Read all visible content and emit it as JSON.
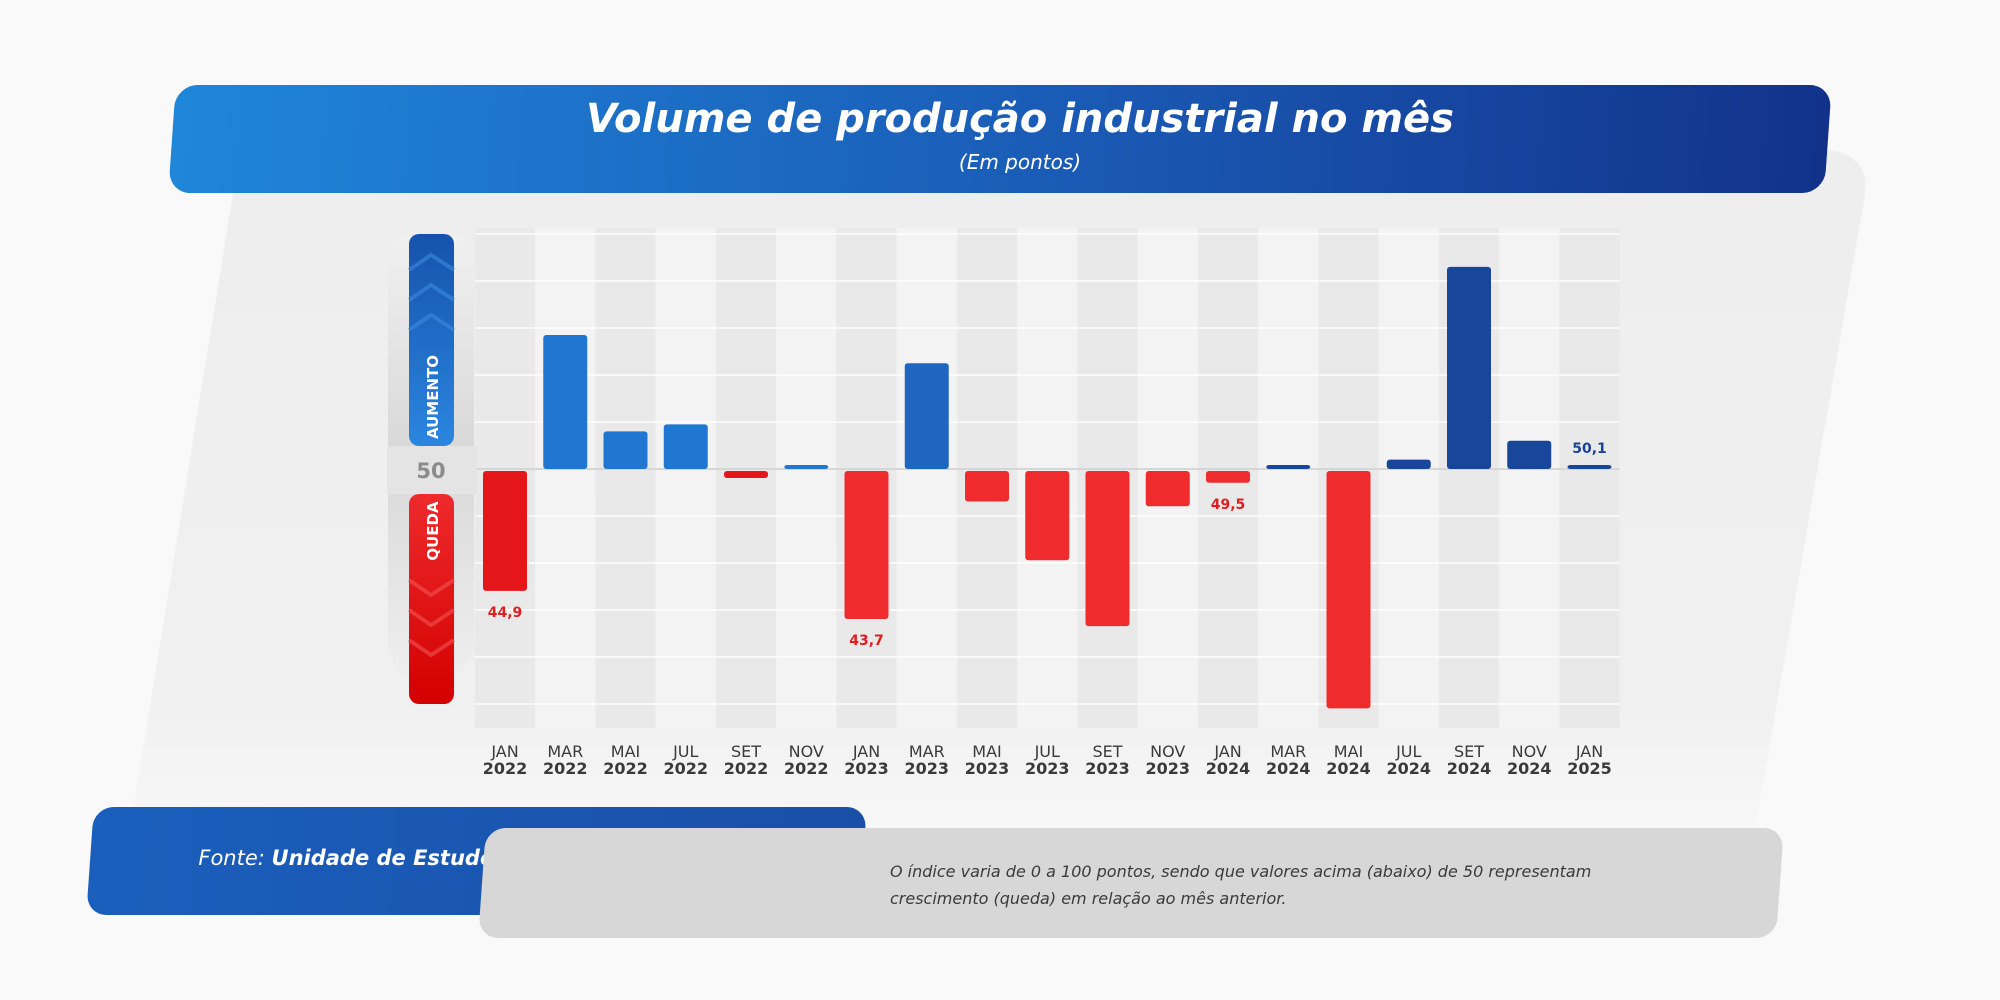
{
  "chart_data": {
    "type": "bar",
    "title": "Volume de produção industrial no mês",
    "subtitle": "(Em pontos)",
    "baseline": 50,
    "baseline_label": "50",
    "up_label": "AUMENTO",
    "down_label": "QUEDA",
    "categories": [
      {
        "month": "JAN",
        "year": "2022"
      },
      {
        "month": "MAR",
        "year": "2022"
      },
      {
        "month": "MAI",
        "year": "2022"
      },
      {
        "month": "JUL",
        "year": "2022"
      },
      {
        "month": "SET",
        "year": "2022"
      },
      {
        "month": "NOV",
        "year": "2022"
      },
      {
        "month": "JAN",
        "year": "2023"
      },
      {
        "month": "MAR",
        "year": "2023"
      },
      {
        "month": "MAI",
        "year": "2023"
      },
      {
        "month": "JUL",
        "year": "2023"
      },
      {
        "month": "SET",
        "year": "2023"
      },
      {
        "month": "NOV",
        "year": "2023"
      },
      {
        "month": "JAN",
        "year": "2024"
      },
      {
        "month": "MAR",
        "year": "2024"
      },
      {
        "month": "MAI",
        "year": "2024"
      },
      {
        "month": "JUL",
        "year": "2024"
      },
      {
        "month": "SET",
        "year": "2024"
      },
      {
        "month": "NOV",
        "year": "2024"
      },
      {
        "month": "JAN",
        "year": "2025"
      }
    ],
    "values": [
      44.9,
      55.7,
      51.6,
      51.9,
      49.7,
      50.1,
      43.7,
      54.5,
      48.7,
      46.2,
      43.4,
      48.5,
      49.5,
      50.1,
      39.9,
      50.4,
      58.6,
      51.2,
      50.1
    ],
    "data_labels": [
      "44,9",
      "",
      "",
      "",
      "",
      "",
      "43,7",
      "",
      "",
      "",
      "",
      "",
      "49,5",
      "",
      "",
      "",
      "",
      "",
      "50,1"
    ],
    "ylim": [
      40,
      60
    ],
    "grid": true,
    "colors": {
      "up_2022": "#1f77d2",
      "up_2023": "#1e66bf",
      "up_2024": "#18469b",
      "down": "#e5161a",
      "down_light": "#ef2b2e",
      "label_down": "#e01e1e",
      "label_up": "#1a4596",
      "axis_text": "#3a3a3a"
    }
  },
  "source": {
    "prefix": "Fonte: ",
    "name": "Unidade de Estudos Econômicos - FIERGS"
  },
  "note": "O índice varia de 0 a 100 pontos, sendo que valores acima (abaixo) de 50 representam crescimento (queda) em relação ao mês anterior."
}
